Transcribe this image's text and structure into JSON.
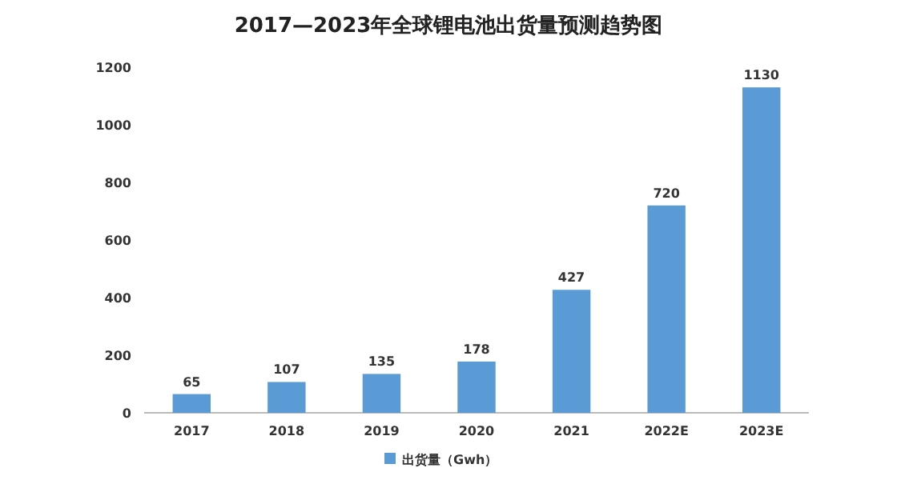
{
  "chart_data": {
    "type": "bar",
    "title": "2017—2023年全球锂电池出货量预测趋势图",
    "categories": [
      "2017",
      "2018",
      "2019",
      "2020",
      "2021",
      "2022E",
      "2023E"
    ],
    "series": [
      {
        "name": "出货量（Gwh）",
        "color": "#5b9bd5",
        "values": [
          65,
          107,
          135,
          178,
          427,
          720,
          1130
        ]
      }
    ],
    "ylim": [
      0,
      1200
    ],
    "yticks": [
      0,
      200,
      400,
      600,
      800,
      1000,
      1200
    ],
    "data_labels": true,
    "legend": "bottom"
  }
}
